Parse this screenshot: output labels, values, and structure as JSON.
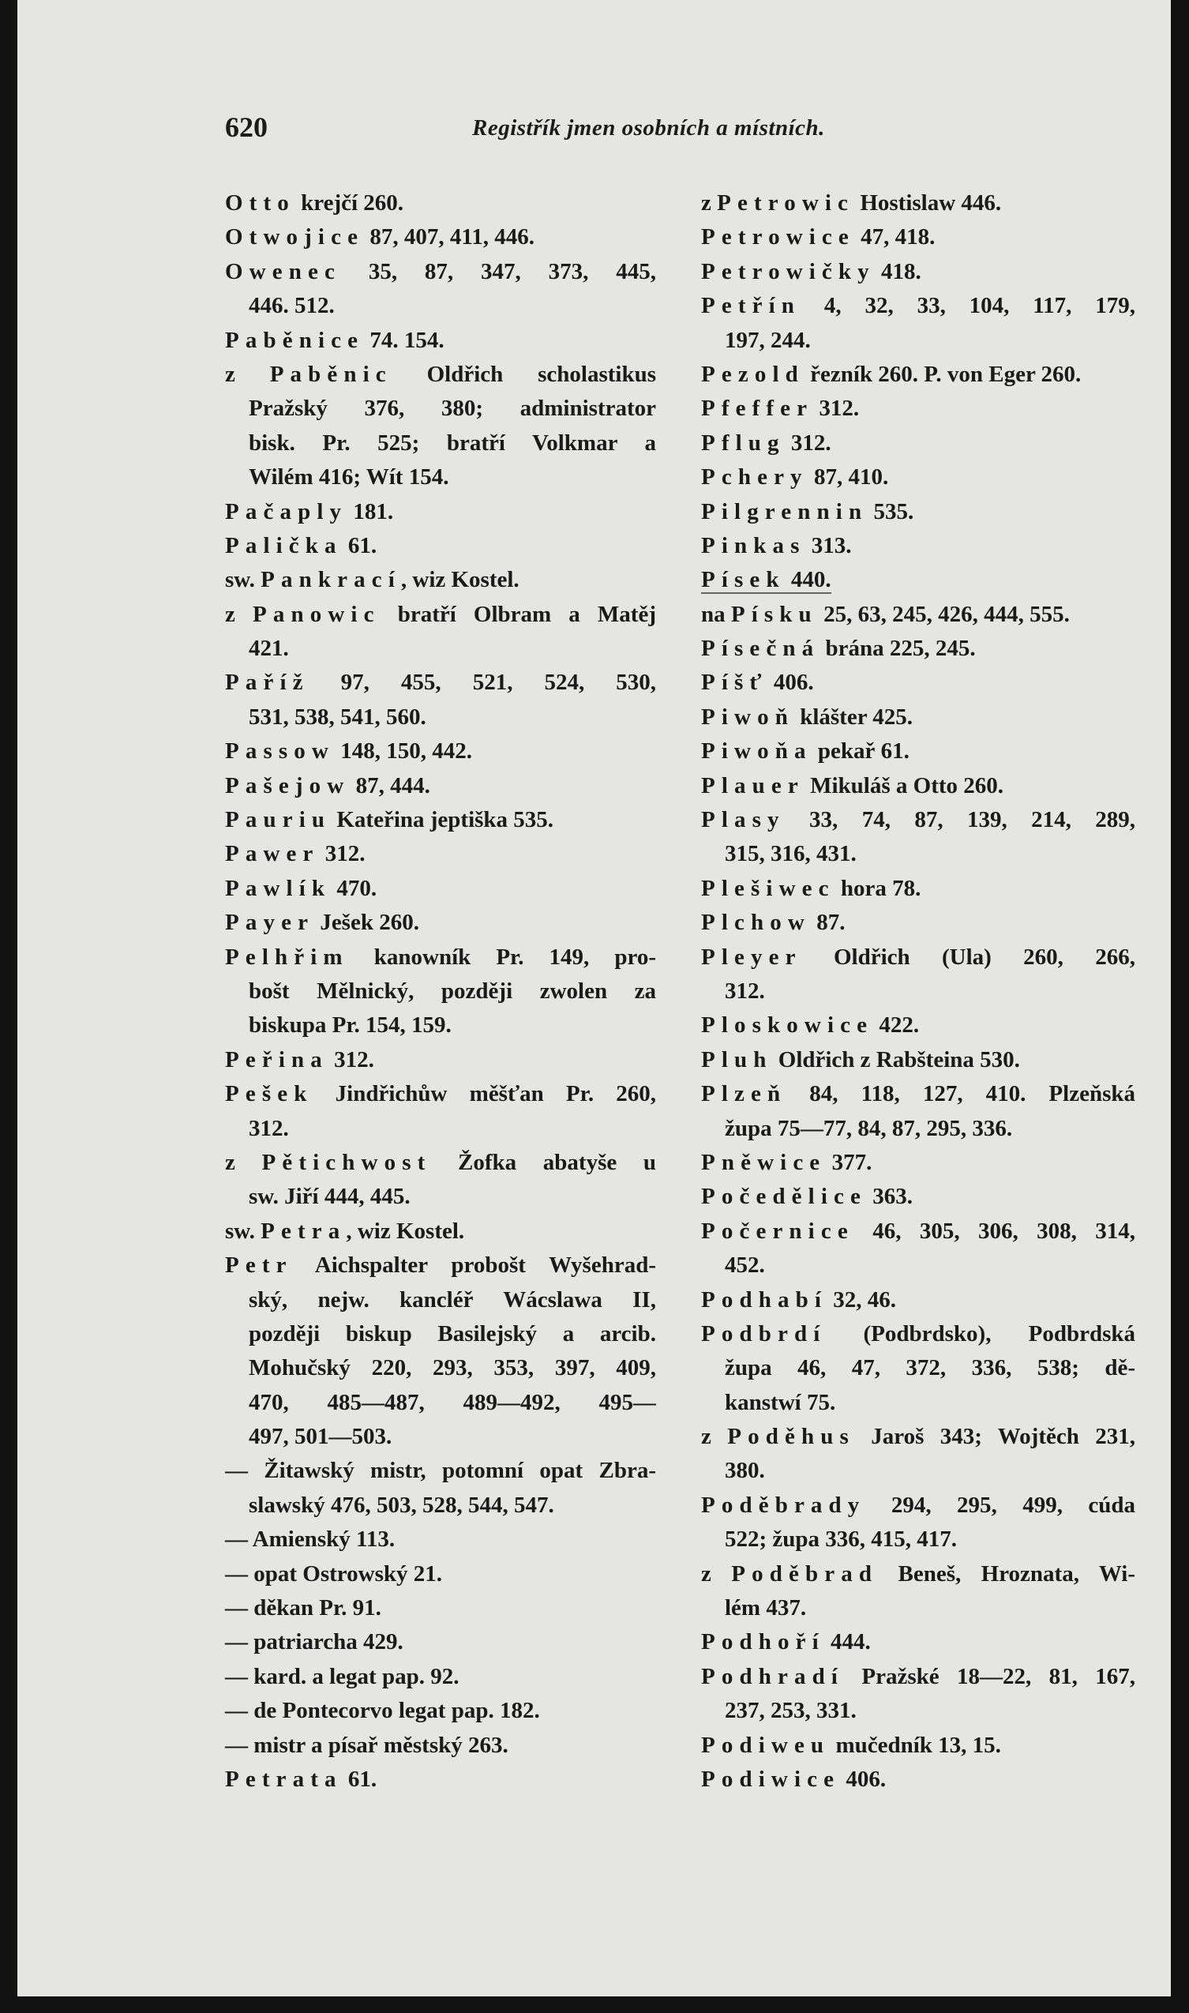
{
  "header": {
    "page_number": "620",
    "title": "Registřík jmen osobních a místních."
  },
  "left_column": [
    {
      "pre": "",
      "head": "Otto",
      "first": " krejčí 260.",
      "cont": []
    },
    {
      "pre": "",
      "head": "Otwojice",
      "first": " 87, 407, 411, 446.",
      "cont": []
    },
    {
      "pre": "",
      "head": "Owenec",
      "first": " 35, 87, 347, 373, 445,",
      "cont": [
        "446. 512."
      ]
    },
    {
      "pre": "",
      "head": "Paběnice",
      "first": " 74. 154.",
      "cont": []
    },
    {
      "pre": "z ",
      "head": "Paběnic",
      "first": " Oldřich scholastikus",
      "cont": [
        "Pražský 376, 380; administrator",
        "bisk. Pr. 525; bratří Volkmar a",
        "Wilém 416; Wít 154."
      ]
    },
    {
      "pre": "",
      "head": "Pačaply",
      "first": " 181.",
      "cont": []
    },
    {
      "pre": "",
      "head": "Palička",
      "first": " 61.",
      "cont": []
    },
    {
      "pre": "sw. ",
      "head": "Pankrací",
      "first": ", wiz Kostel.",
      "cont": []
    },
    {
      "pre": "z ",
      "head": "Panowic",
      "first": " bratří Olbram a Matěj",
      "cont": [
        "421."
      ]
    },
    {
      "pre": "",
      "head": "Paříž",
      "first": " 97, 455, 521, 524, 530,",
      "cont": [
        "531, 538, 541, 560."
      ]
    },
    {
      "pre": "",
      "head": "Passow",
      "first": " 148, 150, 442.",
      "cont": []
    },
    {
      "pre": "",
      "head": "Pašejow",
      "first": " 87, 444.",
      "cont": []
    },
    {
      "pre": "",
      "head": "Pauriu",
      "first": " Kateřina jeptiška 535.",
      "cont": []
    },
    {
      "pre": "",
      "head": "Pawer",
      "first": " 312.",
      "cont": []
    },
    {
      "pre": "",
      "head": "Pawlík",
      "first": " 470.",
      "cont": []
    },
    {
      "pre": "",
      "head": "Payer",
      "first": " Ješek 260.",
      "cont": []
    },
    {
      "pre": "",
      "head": "Pelhřim",
      "first": " kanowník Pr. 149, pro-",
      "cont": [
        "bošt Mělnický, později zwolen za",
        "biskupa Pr. 154, 159."
      ]
    },
    {
      "pre": "",
      "head": "Peřina",
      "first": " 312.",
      "cont": []
    },
    {
      "pre": "",
      "head": "Pešek",
      "first": " Jindřichůw měšťan Pr. 260,",
      "cont": [
        "312."
      ]
    },
    {
      "pre": "z ",
      "head": "Pětichwost",
      "first": " Žofka abatyše u",
      "cont": [
        "sw. Jiří 444, 445."
      ]
    },
    {
      "pre": "sw. ",
      "head": "Petra",
      "first": ", wiz Kostel.",
      "cont": []
    },
    {
      "pre": "",
      "head": "Petr",
      "first": " Aichspalter probošt Wyšehrad-",
      "cont": [
        "ský, nejw. kancléř Wácslawa II,",
        "později biskup Basilejský a arcib.",
        "Mohučský 220, 293, 353, 397, 409,",
        "470, 485—487, 489—492, 495—",
        "497, 501—503."
      ]
    },
    {
      "pre": "— ",
      "head": "",
      "first": "Žitawský mistr, potomní opat Zbra-",
      "cont": [
        "slawský 476, 503, 528, 544, 547."
      ]
    },
    {
      "pre": "— ",
      "head": "",
      "first": " Amienský 113.",
      "cont": []
    },
    {
      "pre": "— ",
      "head": "",
      "first": " opat Ostrowský 21.",
      "cont": []
    },
    {
      "pre": "— ",
      "head": "",
      "first": " děkan Pr. 91.",
      "cont": []
    },
    {
      "pre": "— ",
      "head": "",
      "first": " patriarcha 429.",
      "cont": []
    },
    {
      "pre": "— ",
      "head": "",
      "first": " kard. a legat pap. 92.",
      "cont": []
    },
    {
      "pre": "— ",
      "head": "",
      "first": " de Pontecorvo legat pap. 182.",
      "cont": []
    },
    {
      "pre": "— ",
      "head": "",
      "first": " mistr a písař městský 263.",
      "cont": []
    },
    {
      "pre": "",
      "head": "Petrata",
      "first": " 61.",
      "cont": []
    }
  ],
  "right_column": [
    {
      "pre": "z ",
      "head": "Petrowic",
      "first": " Hostislaw 446.",
      "cont": []
    },
    {
      "pre": "",
      "head": "Petrowice",
      "first": " 47, 418.",
      "cont": []
    },
    {
      "pre": "",
      "head": "Petrowičky",
      "first": " 418.",
      "cont": []
    },
    {
      "pre": "",
      "head": "Petřín",
      "first": " 4, 32, 33, 104, 117, 179,",
      "cont": [
        "197, 244."
      ]
    },
    {
      "pre": "",
      "head": "Pezold",
      "first": " řezník 260. P. von Eger 260.",
      "cont": []
    },
    {
      "pre": "",
      "head": "Pfeffer",
      "first": " 312.",
      "cont": []
    },
    {
      "pre": "",
      "head": "Pflug",
      "first": " 312.",
      "cont": []
    },
    {
      "pre": "",
      "head": "Pchery",
      "first": " 87, 410.",
      "cont": []
    },
    {
      "pre": "",
      "head": "Pilgrennin",
      "first": " 535.",
      "cont": []
    },
    {
      "pre": "",
      "head": "Pinkas",
      "first": " 313.",
      "cont": []
    },
    {
      "pre": "",
      "head": "Písek",
      "first": " 440.",
      "cont": [],
      "underlined": true
    },
    {
      "pre": "na ",
      "head": "Písku",
      "first": " 25, 63, 245, 426, 444, 555.",
      "cont": []
    },
    {
      "pre": "",
      "head": "Písečná",
      "first": " brána 225, 245.",
      "cont": []
    },
    {
      "pre": "",
      "head": "Píšť",
      "first": " 406.",
      "cont": []
    },
    {
      "pre": "",
      "head": "Piwoň",
      "first": " klášter 425.",
      "cont": []
    },
    {
      "pre": "",
      "head": "Piwoňa",
      "first": " pekař 61.",
      "cont": []
    },
    {
      "pre": "",
      "head": "Plauer",
      "first": " Mikuláš a Otto 260.",
      "cont": []
    },
    {
      "pre": "",
      "head": "Plasy",
      "first": " 33, 74, 87, 139, 214, 289,",
      "cont": [
        "315, 316, 431."
      ]
    },
    {
      "pre": "",
      "head": "Plešiwec",
      "first": " hora 78.",
      "cont": []
    },
    {
      "pre": "",
      "head": "Plchow",
      "first": " 87.",
      "cont": []
    },
    {
      "pre": "",
      "head": "Pleyer",
      "first": " Oldřich (Ula) 260, 266,",
      "cont": [
        "312."
      ]
    },
    {
      "pre": "",
      "head": "Ploskowice",
      "first": " 422.",
      "cont": []
    },
    {
      "pre": "",
      "head": "Pluh",
      "first": " Oldřich z Rabšteina 530.",
      "cont": []
    },
    {
      "pre": "",
      "head": "Plzeň",
      "first": " 84, 118, 127, 410. Plzeňská",
      "cont": [
        "župa 75—77, 84, 87, 295, 336."
      ]
    },
    {
      "pre": "",
      "head": "Pněwice",
      "first": " 377.",
      "cont": []
    },
    {
      "pre": "",
      "head": "Počedělice",
      "first": " 363.",
      "cont": []
    },
    {
      "pre": "",
      "head": "Počernice",
      "first": " 46, 305, 306, 308, 314,",
      "cont": [
        "452."
      ]
    },
    {
      "pre": "",
      "head": "Podhabí",
      "first": " 32, 46.",
      "cont": []
    },
    {
      "pre": "",
      "head": "Podbrdí",
      "first": " (Podbrdsko), Podbrdská",
      "cont": [
        "župa 46, 47, 372, 336, 538; dě-",
        "kanstwí 75."
      ]
    },
    {
      "pre": "z ",
      "head": "Poděhus",
      "first": " Jaroš 343; Wojtěch 231,",
      "cont": [
        "380."
      ]
    },
    {
      "pre": "",
      "head": "Poděbrady",
      "first": " 294, 295, 499, cúda",
      "cont": [
        "522; župa 336, 415, 417."
      ]
    },
    {
      "pre": "z ",
      "head": "Poděbrad",
      "first": " Beneš, Hroznata, Wi-",
      "cont": [
        "lém 437."
      ]
    },
    {
      "pre": "",
      "head": "Podhoří",
      "first": " 444.",
      "cont": []
    },
    {
      "pre": "",
      "head": "Podhradí",
      "first": " Pražské 18—22, 81, 167,",
      "cont": [
        "237, 253, 331."
      ]
    },
    {
      "pre": "",
      "head": "Podiweu",
      "first": " mučedník 13, 15.",
      "cont": []
    },
    {
      "pre": "",
      "head": "Podiwice",
      "first": " 406.",
      "cont": []
    }
  ]
}
